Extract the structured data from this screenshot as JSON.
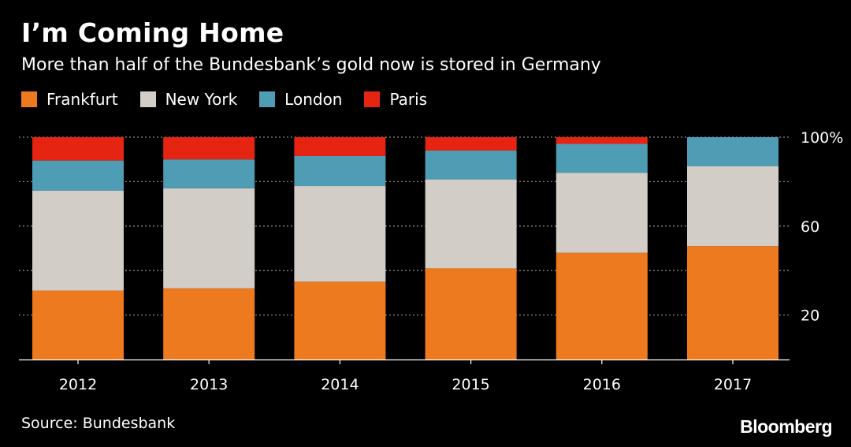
{
  "header": {
    "title": "I’m Coming Home",
    "subtitle": "More than half of the Bundesbank’s gold now is stored in Germany"
  },
  "legend": [
    {
      "label": "Frankfurt",
      "color": "#ee7a1f"
    },
    {
      "label": "New York",
      "color": "#d3cdc8"
    },
    {
      "label": "London",
      "color": "#4e9db5"
    },
    {
      "label": "Paris",
      "color": "#e52412"
    }
  ],
  "footer": {
    "source": "Source: Bundesbank",
    "brand": "Bloomberg"
  },
  "chart_data": {
    "type": "bar",
    "stacked": true,
    "title": "I’m Coming Home",
    "subtitle": "More than half of the Bundesbank’s gold now is stored in Germany",
    "categories": [
      "2012",
      "2013",
      "2014",
      "2015",
      "2016",
      "2017"
    ],
    "series": [
      {
        "name": "Frankfurt",
        "color": "#ee7a1f",
        "values": [
          31,
          32,
          35,
          41,
          48,
          51
        ]
      },
      {
        "name": "New York",
        "color": "#d3cdc8",
        "values": [
          45,
          45,
          43,
          40,
          36,
          36
        ]
      },
      {
        "name": "London",
        "color": "#4e9db5",
        "values": [
          13.5,
          13,
          13.5,
          13,
          13,
          13
        ]
      },
      {
        "name": "Paris",
        "color": "#e52412",
        "values": [
          10.5,
          10,
          8.5,
          6,
          3,
          0
        ]
      }
    ],
    "y_ticks": [
      {
        "value": 20,
        "label": "20"
      },
      {
        "value": 60,
        "label": "60"
      },
      {
        "value": 100,
        "label": "100%"
      }
    ],
    "grid_values": [
      20,
      40,
      60,
      80,
      100
    ],
    "ylim": [
      0,
      100
    ],
    "xlabel": "",
    "ylabel": "",
    "y_axis_position": "right",
    "grid": true
  }
}
